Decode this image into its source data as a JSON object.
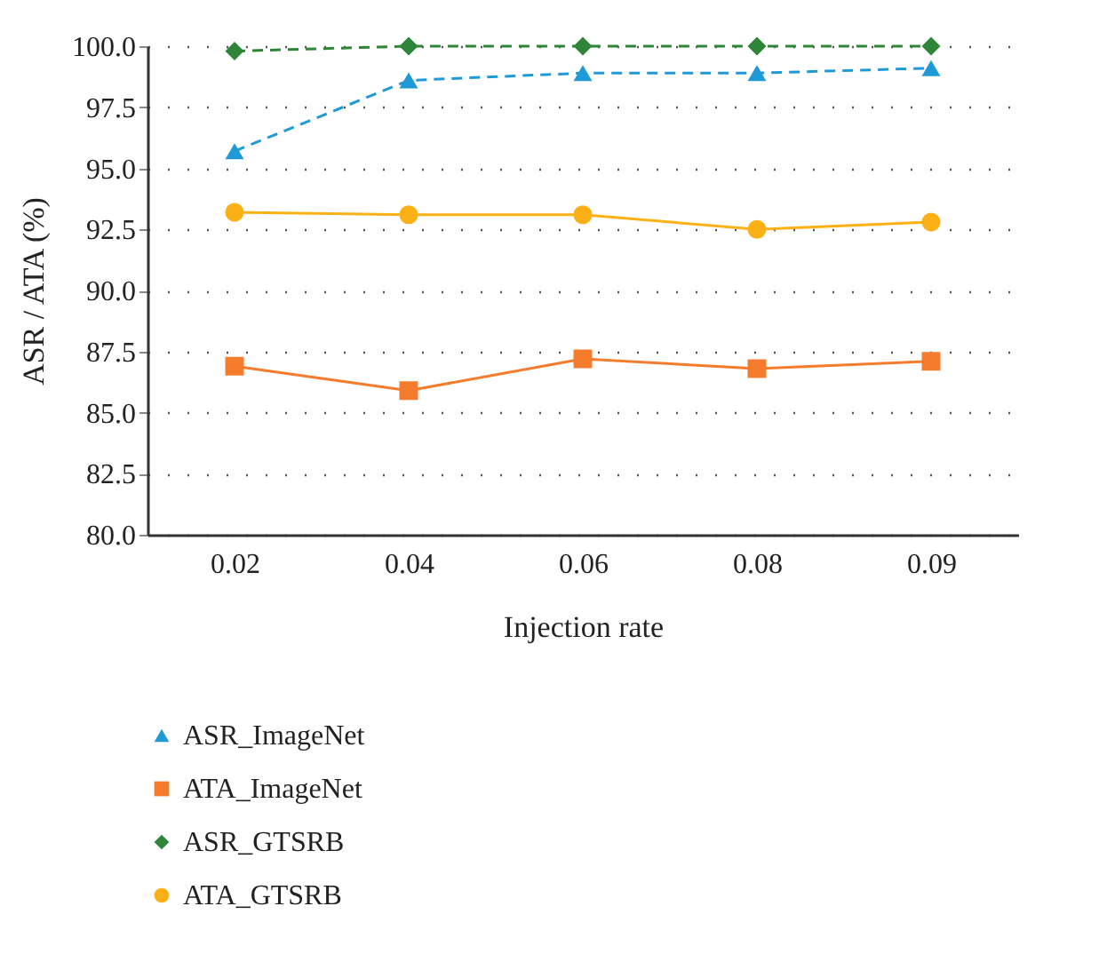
{
  "chart_data": {
    "type": "line",
    "xlabel": "Injection rate",
    "ylabel": "ASR / ATA (%)",
    "categories": [
      "0.02",
      "0.04",
      "0.06",
      "0.08",
      "0.09"
    ],
    "ylim": [
      80,
      100
    ],
    "yticks": [
      {
        "value": 80,
        "label": "80.0"
      },
      {
        "value": 82.5,
        "label": "82.5"
      },
      {
        "value": 85,
        "label": "85.0"
      },
      {
        "value": 87.5,
        "label": "87.5"
      },
      {
        "value": 90,
        "label": "90.0"
      },
      {
        "value": 92.5,
        "label": "92.5"
      },
      {
        "value": 95,
        "label": "95.0"
      },
      {
        "value": 97.5,
        "label": "97.5"
      },
      {
        "value": 100,
        "label": "100.0"
      }
    ],
    "grid": "y",
    "legend": "bottom",
    "series": [
      {
        "name": "ASR_ImageNet",
        "color": "#1f9ad6",
        "marker": "triangle",
        "line_style": "dashed",
        "values": [
          95.7,
          98.6,
          98.9,
          98.9,
          99.1
        ]
      },
      {
        "name": "ATA_ImageNet",
        "color": "#f47c2c",
        "marker": "square",
        "line_style": "solid",
        "values": [
          86.9,
          85.9,
          87.2,
          86.8,
          87.1
        ]
      },
      {
        "name": "ASR_GTSRB",
        "color": "#2e8538",
        "marker": "diamond",
        "line_style": "dashed",
        "values": [
          99.8,
          100,
          100,
          100,
          100
        ]
      },
      {
        "name": "ATA_GTSRB",
        "color": "#fbb116",
        "marker": "circle",
        "line_style": "solid",
        "values": [
          93.2,
          93.1,
          93.1,
          92.5,
          92.8
        ]
      }
    ]
  }
}
